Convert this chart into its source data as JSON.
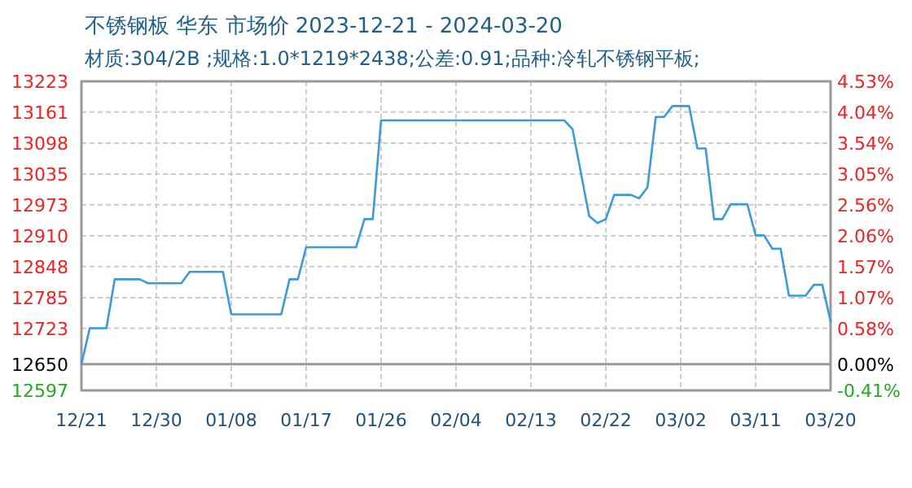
{
  "chart_data": {
    "type": "line",
    "title": "不锈钢板 华东 市场价 2023-12-21 - 2024-03-20",
    "subtitle": "材质:304/2B ;规格:1.0*1219*2438;公差:0.91;品种:冷轧不锈钢平板;",
    "x": [
      "2023-12-21",
      "2023-12-22",
      "2023-12-24",
      "2023-12-25",
      "2023-12-28",
      "2023-12-29",
      "2024-01-02",
      "2024-01-03",
      "2024-01-07",
      "2024-01-08",
      "2024-01-14",
      "2024-01-15",
      "2024-01-16",
      "2024-01-17",
      "2024-01-23",
      "2024-01-24",
      "2024-01-25",
      "2024-01-26",
      "2024-02-17",
      "2024-02-18",
      "2024-02-20",
      "2024-02-21",
      "2024-02-22",
      "2024-02-23",
      "2024-02-25",
      "2024-02-26",
      "2024-02-27",
      "2024-02-28",
      "2024-02-29",
      "2024-03-01",
      "2024-03-03",
      "2024-03-04",
      "2024-03-05",
      "2024-03-06",
      "2024-03-07",
      "2024-03-08",
      "2024-03-10",
      "2024-03-11",
      "2024-03-12",
      "2024-03-13",
      "2024-03-14",
      "2024-03-15",
      "2024-03-17",
      "2024-03-18",
      "2024-03-19",
      "2024-03-20"
    ],
    "series": [
      {
        "color": "#3b9ad9",
        "values": [
          12650,
          12723,
          12723,
          12822,
          12822,
          12814,
          12814,
          12837,
          12837,
          12751,
          12751,
          12822,
          12822,
          12887,
          12887,
          12944,
          12944,
          13144,
          13144,
          13126,
          12950,
          12936,
          12944,
          12993,
          12993,
          12986,
          13008,
          13151,
          13151,
          13173,
          13173,
          13087,
          13087,
          12944,
          12944,
          12974,
          12974,
          12911,
          12911,
          12884,
          12884,
          12789,
          12789,
          12811,
          12811,
          12737
        ]
      }
    ],
    "xlim": [
      "2023-12-21",
      "2024-03-20"
    ],
    "xticks": [
      {
        "value": "2023-12-21",
        "label": "12/21"
      },
      {
        "value": "2023-12-30",
        "label": "12/30"
      },
      {
        "value": "2024-01-08",
        "label": "01/08"
      },
      {
        "value": "2024-01-17",
        "label": "01/17"
      },
      {
        "value": "2024-01-26",
        "label": "01/26"
      },
      {
        "value": "2024-02-04",
        "label": "02/04"
      },
      {
        "value": "2024-02-13",
        "label": "02/13"
      },
      {
        "value": "2024-02-22",
        "label": "02/22"
      },
      {
        "value": "2024-03-02",
        "label": "03/02"
      },
      {
        "value": "2024-03-11",
        "label": "03/11"
      },
      {
        "value": "2024-03-20",
        "label": "03/20"
      }
    ],
    "ylim": [
      12597,
      13223
    ],
    "yticks": [
      13223,
      13161,
      13098,
      13035,
      12973,
      12910,
      12848,
      12785,
      12723,
      12650,
      12597
    ],
    "y2lim": [
      -0.41,
      4.53
    ],
    "y2ticks": [
      {
        "value": 4.53,
        "label": "4.53%"
      },
      {
        "value": 4.04,
        "label": "4.04%"
      },
      {
        "value": 3.54,
        "label": "3.54%"
      },
      {
        "value": 3.05,
        "label": "3.05%"
      },
      {
        "value": 2.56,
        "label": "2.56%"
      },
      {
        "value": 2.06,
        "label": "2.06%"
      },
      {
        "value": 1.57,
        "label": "1.57%"
      },
      {
        "value": 1.07,
        "label": "1.07%"
      },
      {
        "value": 0.58,
        "label": "0.58%"
      },
      {
        "value": 0,
        "label": "0.00%"
      },
      {
        "value": -0.41,
        "label": "-0.41%"
      }
    ],
    "grid": true,
    "ref_lines": [
      {
        "axis": "y",
        "value": 12650,
        "color": "#999999"
      }
    ]
  }
}
